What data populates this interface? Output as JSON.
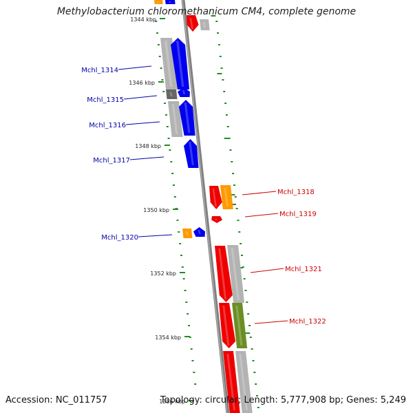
{
  "title": "Methylobacterium chloromethanicum CM4, complete genome",
  "footer": {
    "accession": "Accession: NC_011757",
    "topology": "Topology: circular; Length: 5,777,908 bp; Genes: 5,249"
  },
  "colors": {
    "forward": "#0000ee",
    "reverse": "#ee0000",
    "orange": "#ff9900",
    "gray": "#b3b3b3",
    "darkgray": "#666666",
    "olive": "#6b8e23",
    "ticks": "#228b22",
    "backbone": "#808080"
  },
  "scale_labels": [
    "1344 kbp",
    "1346 kbp",
    "1348 kbp",
    "1350 kbp",
    "1352 kbp",
    "1354 kbp",
    "1356 kbp"
  ],
  "genes": [
    {
      "label": "Mchl_1314",
      "strand": "forward"
    },
    {
      "label": "Mchl_1315",
      "strand": "forward"
    },
    {
      "label": "Mchl_1316",
      "strand": "forward"
    },
    {
      "label": "Mchl_1317",
      "strand": "forward"
    },
    {
      "label": "Mchl_1318",
      "strand": "reverse"
    },
    {
      "label": "Mchl_1319",
      "strand": "reverse"
    },
    {
      "label": "Mchl_1320",
      "strand": "forward"
    },
    {
      "label": "Mchl_1321",
      "strand": "reverse"
    },
    {
      "label": "Mchl_1322",
      "strand": "reverse"
    }
  ]
}
